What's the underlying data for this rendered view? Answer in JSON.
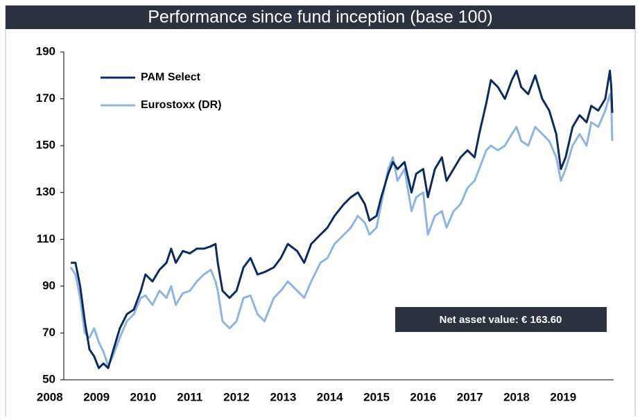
{
  "chart_data": {
    "type": "line",
    "title": "Performance since fund inception (base 100)",
    "annotation": "Net asset value: € 163.60",
    "legend": "upper left",
    "x": [
      2008.45,
      2008.55,
      2008.65,
      2008.75,
      2008.85,
      2008.95,
      2009.05,
      2009.15,
      2009.25,
      2009.35,
      2009.5,
      2009.65,
      2009.8,
      2009.95,
      2010.05,
      2010.2,
      2010.35,
      2010.5,
      2010.6,
      2010.7,
      2010.85,
      2011.0,
      2011.15,
      2011.3,
      2011.45,
      2011.55,
      2011.6,
      2011.7,
      2011.85,
      2012.0,
      2012.15,
      2012.3,
      2012.45,
      2012.6,
      2012.8,
      2012.95,
      2013.1,
      2013.3,
      2013.45,
      2013.6,
      2013.8,
      2013.95,
      2014.1,
      2014.3,
      2014.45,
      2014.6,
      2014.75,
      2014.85,
      2015.0,
      2015.1,
      2015.25,
      2015.35,
      2015.45,
      2015.6,
      2015.75,
      2015.85,
      2016.0,
      2016.1,
      2016.25,
      2016.4,
      2016.5,
      2016.65,
      2016.8,
      2016.95,
      2017.1,
      2017.2,
      2017.35,
      2017.45,
      2017.6,
      2017.75,
      2017.9,
      2018.0,
      2018.1,
      2018.25,
      2018.4,
      2018.55,
      2018.7,
      2018.85,
      2018.95,
      2019.05,
      2019.2,
      2019.35,
      2019.5,
      2019.6,
      2019.75,
      2019.9,
      2020.0,
      2020.03,
      2020.05
    ],
    "series": [
      {
        "name": "PAM Select",
        "color": "#0c2a5f",
        "values": [
          100,
          100,
          90,
          75,
          63,
          60,
          55,
          57,
          55,
          62,
          72,
          78,
          80,
          88,
          95,
          92,
          97,
          100,
          106,
          100,
          105,
          104,
          106,
          106,
          107,
          108,
          100,
          88,
          85,
          88,
          98,
          102,
          95,
          96,
          98,
          102,
          108,
          105,
          100,
          108,
          112,
          115,
          120,
          125,
          128,
          130,
          125,
          118,
          120,
          128,
          138,
          143,
          140,
          143,
          130,
          138,
          140,
          128,
          140,
          145,
          135,
          140,
          145,
          148,
          145,
          155,
          168,
          178,
          175,
          170,
          178,
          182,
          175,
          172,
          180,
          170,
          165,
          155,
          140,
          145,
          158,
          163,
          160,
          167,
          165,
          170,
          182,
          175,
          164
        ]
      },
      {
        "name": "Eurostoxx (DR)",
        "color": "#8eb4e3",
        "values": [
          98,
          95,
          85,
          70,
          68,
          72,
          66,
          62,
          56,
          60,
          68,
          75,
          78,
          85,
          86,
          82,
          88,
          85,
          90,
          82,
          87,
          88,
          92,
          95,
          97,
          92,
          88,
          75,
          72,
          75,
          85,
          86,
          78,
          75,
          85,
          88,
          92,
          88,
          85,
          92,
          100,
          102,
          108,
          112,
          115,
          120,
          117,
          112,
          115,
          125,
          140,
          145,
          135,
          140,
          122,
          128,
          130,
          112,
          120,
          122,
          115,
          122,
          125,
          132,
          135,
          140,
          148,
          150,
          148,
          150,
          155,
          158,
          152,
          150,
          158,
          155,
          152,
          145,
          135,
          140,
          150,
          155,
          150,
          160,
          158,
          165,
          172,
          168,
          152
        ]
      }
    ],
    "xlim": [
      2008.3,
      2020.08
    ],
    "xticks": [
      2008,
      2009,
      2010,
      2011,
      2012,
      2013,
      2014,
      2015,
      2016,
      2017,
      2018,
      2019
    ],
    "ylim": [
      50,
      190
    ],
    "yticks": [
      50,
      70,
      90,
      110,
      130,
      150,
      170,
      190
    ]
  }
}
